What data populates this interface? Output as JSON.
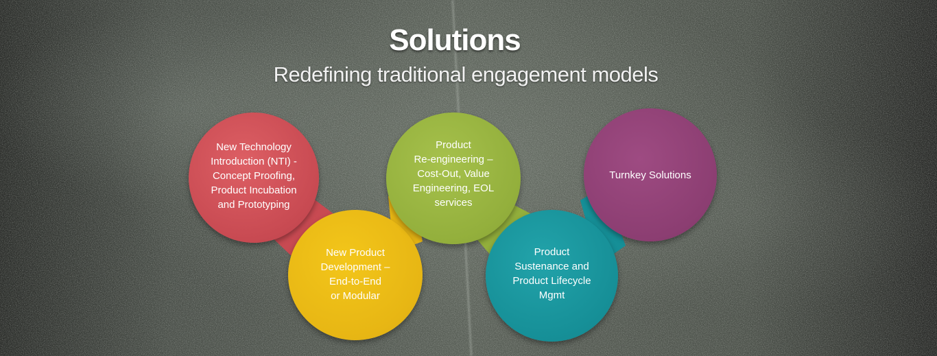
{
  "header": {
    "title": "Solutions",
    "subtitle": "Redefining traditional engagement models"
  },
  "nodes": [
    {
      "label": "New Technology\nIntroduction (NTI) -\nConcept Proofing,\nProduct Incubation\nand Prototyping",
      "color": "#c84a52"
    },
    {
      "label": "New Product\nDevelopment –\nEnd-to-End\nor Modular",
      "color": "#e7b614"
    },
    {
      "label": "Product\nRe-engineering –\nCost-Out, Value\nEngineering, EOL\nservices",
      "color": "#93af3c"
    },
    {
      "label": "Product\nSustenance and\nProduct Lifecycle\nMgmt",
      "color": "#168f97"
    },
    {
      "label": "Turnkey Solutions",
      "color": "#8c3e72"
    }
  ]
}
